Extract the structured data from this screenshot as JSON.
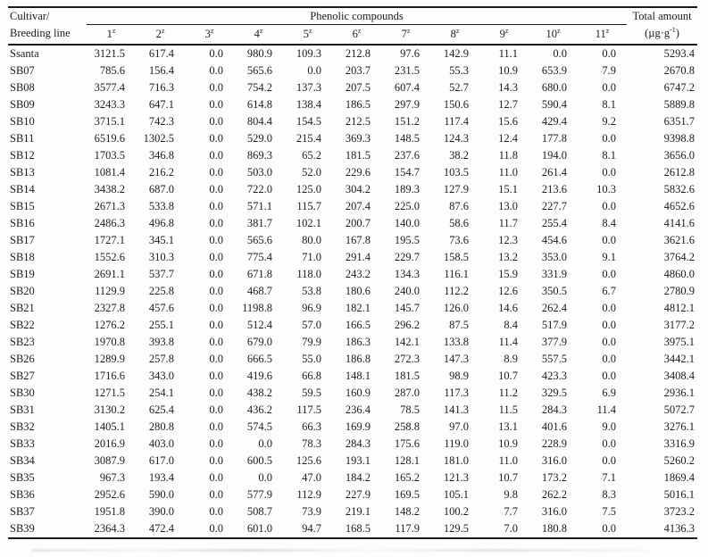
{
  "colors": {
    "text": "#1c1c1c",
    "rule": "#1a1a1a",
    "background": "#fdfdfc"
  },
  "table": {
    "group_header": "Phenolic compounds",
    "cultivar_header_line1": "Cultivar/",
    "cultivar_header_line2": "Breeding line",
    "compound_sup": "z",
    "compound_columns": [
      "1",
      "2",
      "3",
      "4",
      "5",
      "6",
      "7",
      "8",
      "9",
      "10",
      "11"
    ],
    "total_header_line1": "Total amount",
    "total_unit_prefix": "(µg·g",
    "total_unit_sup": "-1",
    "total_unit_suffix": ")",
    "rows": [
      {
        "line": "Ssanta",
        "values": [
          "3121.5",
          "617.4",
          "0.0",
          "980.9",
          "109.3",
          "212.8",
          "97.6",
          "142.9",
          "11.1",
          "0.0",
          "0.0"
        ],
        "total": "5293.4"
      },
      {
        "line": "SB07",
        "values": [
          "785.6",
          "156.4",
          "0.0",
          "565.6",
          "0.0",
          "203.7",
          "231.5",
          "55.3",
          "10.9",
          "653.9",
          "7.9"
        ],
        "total": "2670.8"
      },
      {
        "line": "SB08",
        "values": [
          "3577.4",
          "716.3",
          "0.0",
          "754.2",
          "137.3",
          "207.5",
          "607.4",
          "52.7",
          "14.3",
          "680.0",
          "0.0"
        ],
        "total": "6747.2"
      },
      {
        "line": "SB09",
        "values": [
          "3243.3",
          "647.1",
          "0.0",
          "614.8",
          "138.4",
          "186.5",
          "297.9",
          "150.6",
          "12.7",
          "590.4",
          "8.1"
        ],
        "total": "5889.8"
      },
      {
        "line": "SB10",
        "values": [
          "3715.1",
          "742.3",
          "0.0",
          "804.4",
          "154.5",
          "212.5",
          "151.2",
          "117.4",
          "15.6",
          "429.4",
          "9.2"
        ],
        "total": "6351.7"
      },
      {
        "line": "SB11",
        "values": [
          "6519.6",
          "1302.5",
          "0.0",
          "529.0",
          "215.4",
          "369.3",
          "148.5",
          "124.3",
          "12.4",
          "177.8",
          "0.0"
        ],
        "total": "9398.8"
      },
      {
        "line": "SB12",
        "values": [
          "1703.5",
          "346.8",
          "0.0",
          "869.3",
          "65.2",
          "181.5",
          "237.6",
          "38.2",
          "11.8",
          "194.0",
          "8.1"
        ],
        "total": "3656.0"
      },
      {
        "line": "SB13",
        "values": [
          "1081.4",
          "216.2",
          "0.0",
          "503.0",
          "52.0",
          "229.6",
          "154.7",
          "103.5",
          "11.0",
          "261.4",
          "0.0"
        ],
        "total": "2612.8"
      },
      {
        "line": "SB14",
        "values": [
          "3438.2",
          "687.0",
          "0.0",
          "722.0",
          "125.0",
          "304.2",
          "189.3",
          "127.9",
          "15.1",
          "213.6",
          "10.3"
        ],
        "total": "5832.6"
      },
      {
        "line": "SB15",
        "values": [
          "2671.3",
          "533.8",
          "0.0",
          "571.1",
          "115.7",
          "207.4",
          "225.0",
          "87.6",
          "13.0",
          "227.7",
          "0.0"
        ],
        "total": "4652.6"
      },
      {
        "line": "SB16",
        "values": [
          "2486.3",
          "496.8",
          "0.0",
          "381.7",
          "102.1",
          "200.7",
          "140.0",
          "58.6",
          "11.7",
          "255.4",
          "8.4"
        ],
        "total": "4141.6"
      },
      {
        "line": "SB17",
        "values": [
          "1727.1",
          "345.1",
          "0.0",
          "565.6",
          "80.0",
          "167.8",
          "195.5",
          "73.6",
          "12.3",
          "454.6",
          "0.0"
        ],
        "total": "3621.6"
      },
      {
        "line": "SB18",
        "values": [
          "1552.6",
          "310.3",
          "0.0",
          "775.4",
          "71.0",
          "291.4",
          "229.7",
          "158.5",
          "13.2",
          "353.0",
          "9.1"
        ],
        "total": "3764.2"
      },
      {
        "line": "SB19",
        "values": [
          "2691.1",
          "537.7",
          "0.0",
          "671.8",
          "118.0",
          "243.2",
          "134.3",
          "116.1",
          "15.9",
          "331.9",
          "0.0"
        ],
        "total": "4860.0"
      },
      {
        "line": "SB20",
        "values": [
          "1129.9",
          "225.8",
          "0.0",
          "468.7",
          "53.8",
          "180.6",
          "240.0",
          "112.2",
          "12.6",
          "350.5",
          "6.7"
        ],
        "total": "2780.9"
      },
      {
        "line": "SB21",
        "values": [
          "2327.8",
          "457.6",
          "0.0",
          "1198.8",
          "96.9",
          "182.1",
          "145.7",
          "126.0",
          "14.6",
          "262.4",
          "0.0"
        ],
        "total": "4812.1"
      },
      {
        "line": "SB22",
        "values": [
          "1276.2",
          "255.1",
          "0.0",
          "512.4",
          "57.0",
          "166.5",
          "296.2",
          "87.5",
          "8.4",
          "517.9",
          "0.0"
        ],
        "total": "3177.2"
      },
      {
        "line": "SB23",
        "values": [
          "1970.8",
          "393.8",
          "0.0",
          "679.0",
          "79.9",
          "186.3",
          "142.1",
          "133.8",
          "11.4",
          "377.9",
          "0.0"
        ],
        "total": "3975.1"
      },
      {
        "line": "SB26",
        "values": [
          "1289.9",
          "257.8",
          "0.0",
          "666.5",
          "55.0",
          "186.8",
          "272.3",
          "147.3",
          "8.9",
          "557.5",
          "0.0"
        ],
        "total": "3442.1"
      },
      {
        "line": "SB27",
        "values": [
          "1716.6",
          "343.0",
          "0.0",
          "419.6",
          "66.8",
          "148.1",
          "181.5",
          "98.9",
          "10.7",
          "423.3",
          "0.0"
        ],
        "total": "3408.4"
      },
      {
        "line": "SB30",
        "values": [
          "1271.5",
          "254.1",
          "0.0",
          "438.2",
          "59.5",
          "160.9",
          "287.0",
          "117.3",
          "11.2",
          "329.5",
          "6.9"
        ],
        "total": "2936.1"
      },
      {
        "line": "SB31",
        "values": [
          "3130.2",
          "625.4",
          "0.0",
          "436.2",
          "117.5",
          "236.4",
          "78.5",
          "141.3",
          "11.5",
          "284.3",
          "11.4"
        ],
        "total": "5072.7"
      },
      {
        "line": "SB32",
        "values": [
          "1405.1",
          "280.8",
          "0.0",
          "574.5",
          "66.3",
          "169.9",
          "258.8",
          "97.0",
          "13.1",
          "401.6",
          "9.0"
        ],
        "total": "3276.1"
      },
      {
        "line": "SB33",
        "values": [
          "2016.9",
          "403.0",
          "0.0",
          "0.0",
          "78.3",
          "284.3",
          "175.6",
          "119.0",
          "10.9",
          "228.9",
          "0.0"
        ],
        "total": "3316.9"
      },
      {
        "line": "SB34",
        "values": [
          "3087.9",
          "617.0",
          "0.0",
          "600.5",
          "125.6",
          "193.1",
          "128.1",
          "181.0",
          "11.0",
          "316.0",
          "0.0"
        ],
        "total": "5260.2"
      },
      {
        "line": "SB35",
        "values": [
          "967.3",
          "193.4",
          "0.0",
          "0.0",
          "47.0",
          "184.2",
          "165.2",
          "121.3",
          "10.7",
          "173.2",
          "7.1"
        ],
        "total": "1869.4"
      },
      {
        "line": "SB36",
        "values": [
          "2952.6",
          "590.0",
          "0.0",
          "577.9",
          "112.9",
          "227.9",
          "169.5",
          "105.1",
          "9.8",
          "262.2",
          "8.3"
        ],
        "total": "5016.1"
      },
      {
        "line": "SB37",
        "values": [
          "1951.8",
          "390.0",
          "0.0",
          "508.7",
          "73.9",
          "219.1",
          "148.2",
          "100.2",
          "7.7",
          "316.0",
          "7.5"
        ],
        "total": "3723.2"
      },
      {
        "line": "SB39",
        "values": [
          "2364.3",
          "472.4",
          "0.0",
          "601.0",
          "94.7",
          "168.5",
          "117.9",
          "129.5",
          "7.0",
          "180.8",
          "0.0"
        ],
        "total": "4136.3"
      }
    ]
  }
}
